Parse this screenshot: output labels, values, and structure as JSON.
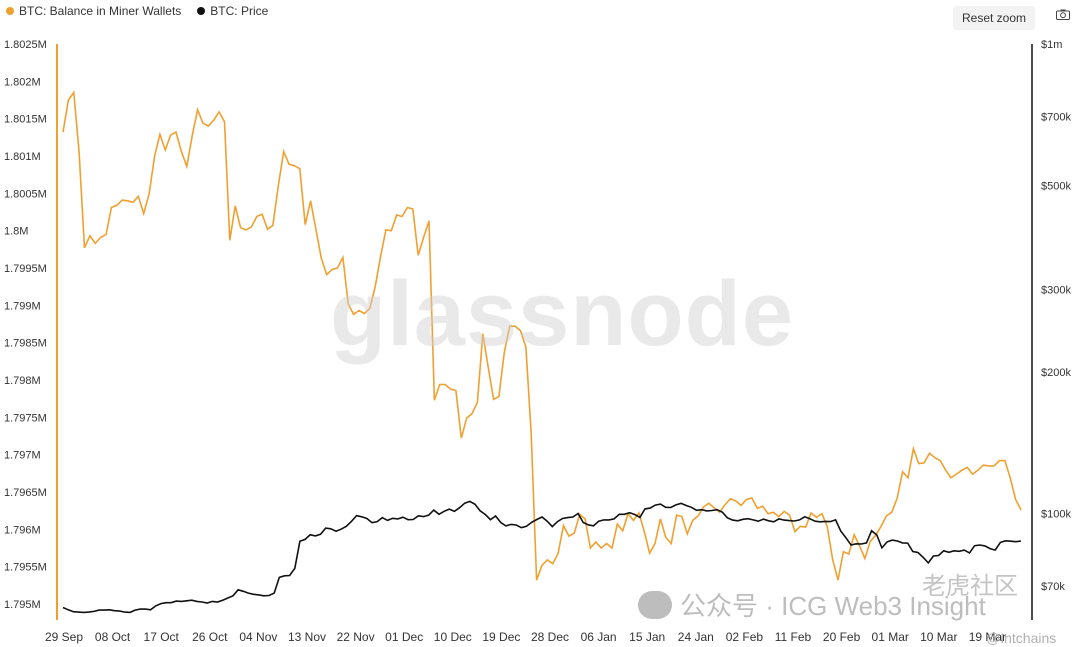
{
  "legend": {
    "series1": "BTC: Balance in Miner Wallets",
    "series2": "BTC: Price"
  },
  "toolbar": {
    "reset_zoom": "Reset zoom",
    "camera_icon": "camera-icon"
  },
  "watermark": "glassnode",
  "overlay": {
    "text": "公众号 · ICG Web3 Insight",
    "logo": "老虎社区",
    "handle": "@Intchains"
  },
  "colors": {
    "balance": "#f0a030",
    "price": "#111111",
    "axis_left": "#f0a030",
    "axis_right": "#111111"
  },
  "chart_data": {
    "type": "line",
    "x_ticks": [
      "29 Sep",
      "08 Oct",
      "17 Oct",
      "26 Oct",
      "04 Nov",
      "13 Nov",
      "22 Nov",
      "01 Dec",
      "10 Dec",
      "19 Dec",
      "28 Dec",
      "06 Jan",
      "15 Jan",
      "24 Jan",
      "02 Feb",
      "11 Feb",
      "20 Feb",
      "01 Mar",
      "10 Mar",
      "19 Mar"
    ],
    "y_left": {
      "ticks": [
        "1.795M",
        "1.7955M",
        "1.796M",
        "1.7965M",
        "1.797M",
        "1.7975M",
        "1.798M",
        "1.7985M",
        "1.799M",
        "1.7995M",
        "1.8M",
        "1.8005M",
        "1.801M",
        "1.8015M",
        "1.802M",
        "1.8025M"
      ],
      "range": [
        1.795,
        1.8025
      ]
    },
    "y_right": {
      "scale": "log",
      "ticks": [
        "$70k",
        "$100k",
        "$200k",
        "$300k",
        "$500k",
        "$700k",
        "$1m"
      ],
      "tick_values": [
        70000,
        100000,
        200000,
        300000,
        500000,
        700000,
        1000000
      ]
    },
    "series": [
      {
        "name": "BTC: Balance in Miner Wallets",
        "axis": "left",
        "values": [
          1.80132,
          1.80175,
          1.80185,
          1.80105,
          1.79977,
          1.79993,
          1.79983,
          1.79991,
          1.79995,
          1.80031,
          1.80034,
          1.80041,
          1.8004,
          1.80038,
          1.80046,
          1.80023,
          1.80049,
          1.80099,
          1.80129,
          1.80108,
          1.80128,
          1.80132,
          1.80106,
          1.80086,
          1.80127,
          1.80162,
          1.80144,
          1.8014,
          1.80148,
          1.80159,
          1.80146,
          1.79987,
          1.80033,
          1.80004,
          1.80001,
          1.80005,
          1.80019,
          1.80022,
          1.80002,
          1.80007,
          1.8006,
          1.80106,
          1.80089,
          1.80087,
          1.80083,
          1.80008,
          1.8004,
          1.80001,
          1.79963,
          1.79941,
          1.79948,
          1.7995,
          1.79964,
          1.79902,
          1.79888,
          1.79893,
          1.79889,
          1.79896,
          1.79925,
          1.79965,
          1.80001,
          1.8,
          1.80021,
          1.80019,
          1.80031,
          1.80029,
          1.79967,
          1.79991,
          1.80013,
          1.79773,
          1.79794,
          1.79794,
          1.79788,
          1.79786,
          1.79722,
          1.79749,
          1.79755,
          1.7977,
          1.79862,
          1.79817,
          1.79774,
          1.79778,
          1.79837,
          1.79872,
          1.79872,
          1.79866,
          1.79844,
          1.79728,
          1.79532,
          1.79552,
          1.79559,
          1.79554,
          1.79568,
          1.79605,
          1.79591,
          1.79595,
          1.7962,
          1.79614,
          1.79575,
          1.79583,
          1.79575,
          1.79581,
          1.79575,
          1.79607,
          1.79598,
          1.79621,
          1.79612,
          1.79622,
          1.79597,
          1.79568,
          1.79581,
          1.79614,
          1.79589,
          1.79581,
          1.79619,
          1.79617,
          1.79594,
          1.79612,
          1.79618,
          1.7963,
          1.79635,
          1.79629,
          1.79623,
          1.79633,
          1.79641,
          1.79638,
          1.79632,
          1.7964,
          1.79642,
          1.79628,
          1.79631,
          1.79621,
          1.79623,
          1.79617,
          1.79624,
          1.79619,
          1.79597,
          1.79604,
          1.79603,
          1.79622,
          1.79616,
          1.79621,
          1.79604,
          1.7956,
          1.79532,
          1.7957,
          1.79567,
          1.79593,
          1.79578,
          1.79561,
          1.79584,
          1.79592,
          1.79604,
          1.79618,
          1.79623,
          1.79642,
          1.79677,
          1.79669,
          1.79708,
          1.79688,
          1.79689,
          1.79702,
          1.79696,
          1.79692,
          1.79679,
          1.79669,
          1.79674,
          1.79679,
          1.79683,
          1.79674,
          1.79679,
          1.79686,
          1.79685,
          1.79685,
          1.79692,
          1.79692,
          1.79669,
          1.7964,
          1.79626
        ]
      },
      {
        "name": "BTC: Price",
        "axis": "right",
        "values": [
          63000,
          62300,
          61700,
          61600,
          61500,
          61600,
          61800,
          62200,
          62200,
          62300,
          62000,
          61900,
          61600,
          61500,
          62200,
          62500,
          62500,
          62300,
          63500,
          64200,
          64500,
          64500,
          65000,
          64900,
          65100,
          65300,
          64900,
          64700,
          64400,
          64900,
          64700,
          65300,
          66000,
          66700,
          68700,
          68200,
          67600,
          67200,
          67000,
          66700,
          66800,
          67600,
          73000,
          73600,
          73700,
          76300,
          87200,
          88000,
          90000,
          89500,
          90200,
          93000,
          92700,
          91600,
          92500,
          93800,
          96100,
          98900,
          98300,
          97500,
          95500,
          96000,
          97900,
          96600,
          97600,
          97300,
          98100,
          96900,
          97000,
          98800,
          98400,
          99100,
          101600,
          99500,
          101000,
          102100,
          101000,
          102800,
          105100,
          106000,
          104500,
          101200,
          99400,
          96900,
          98700,
          95600,
          94000,
          94700,
          94400,
          93200,
          93800,
          95700,
          97000,
          98200,
          96200,
          93700,
          96000,
          97500,
          97900,
          98200,
          99900,
          95600,
          94500,
          94000,
          96200,
          96800,
          96800,
          97300,
          99500,
          99500,
          100300,
          99400,
          98000,
          102200,
          102600,
          104100,
          104600,
          103000,
          102900,
          104200,
          105000,
          103900,
          103000,
          101500,
          101800,
          101200,
          101400,
          101800,
          100600,
          97800,
          96700,
          96400,
          97100,
          97400,
          96800,
          96200,
          97200,
          96400,
          95900,
          97300,
          96700,
          96500,
          96300,
          96800,
          98300,
          97400,
          96200,
          95900,
          96100,
          96000,
          96800,
          91700,
          88700,
          85600,
          86100,
          86000,
          86500,
          91800,
          89900,
          84400,
          86900,
          87700,
          87300,
          86500,
          86400,
          82900,
          82500,
          80600,
          78400,
          81100,
          81300,
          83200,
          82600,
          83200,
          83000,
          83500,
          82300,
          85300,
          85600,
          85200,
          84100,
          83500,
          86700,
          87400,
          87200,
          87000,
          87300
        ]
      }
    ]
  }
}
